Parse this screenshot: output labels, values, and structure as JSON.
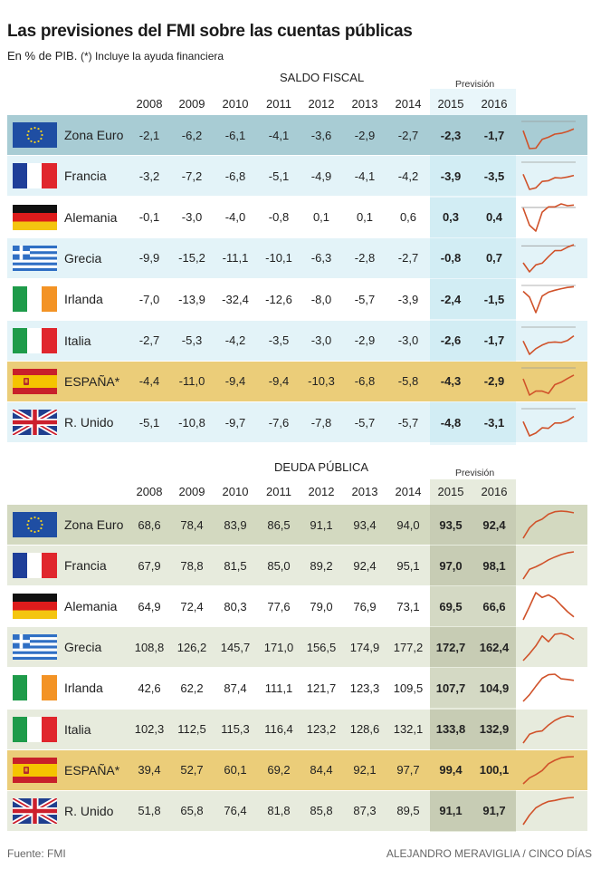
{
  "title": "Las previsiones del FMI sobre las cuentas públicas",
  "subtitle": "En % de PIB.",
  "subtitle_note": "(*) Incluye la ayuda financiera",
  "footer": {
    "source": "Fuente: FMI",
    "credit": "ALEJANDRO MERAVIGLIA / CINCO DÍAS"
  },
  "colors": {
    "sparkline": "#d0522a",
    "row_alt_fiscal": "#e3f3f8",
    "highlight_fiscal": "#a8ccd4",
    "forecast_fiscal": "#d2edf4",
    "espana": "#ebcd79",
    "row_alt_debt": "#e7ebdd",
    "highlight_debt": "#d3d9c0",
    "forecast_debt": "#c7ccb4"
  },
  "chart_data": [
    {
      "type": "table",
      "title": "SALDO FISCAL",
      "forecast_label": "Previsión",
      "years": [
        "2008",
        "2009",
        "2010",
        "2011",
        "2012",
        "2013",
        "2014",
        "2015",
        "2016"
      ],
      "rows": [
        {
          "country": "Zona Euro",
          "flag": "eu-flag",
          "values": [
            "-2,1",
            "-6,2",
            "-6,1",
            "-4,1",
            "-3,6",
            "-2,9",
            "-2,7",
            "-2,3",
            "-1,7"
          ],
          "series": [
            -2.1,
            -6.2,
            -6.1,
            -4.1,
            -3.6,
            -2.9,
            -2.7,
            -2.3,
            -1.7
          ]
        },
        {
          "country": "Francia",
          "flag": "france-flag",
          "values": [
            "-3,2",
            "-7,2",
            "-6,8",
            "-5,1",
            "-4,9",
            "-4,1",
            "-4,2",
            "-3,9",
            "-3,5"
          ],
          "series": [
            -3.2,
            -7.2,
            -6.8,
            -5.1,
            -4.9,
            -4.1,
            -4.2,
            -3.9,
            -3.5
          ]
        },
        {
          "country": "Alemania",
          "flag": "germany-flag",
          "values": [
            "-0,1",
            "-3,0",
            "-4,0",
            "-0,8",
            "0,1",
            "0,1",
            "0,6",
            "0,3",
            "0,4"
          ],
          "series": [
            -0.1,
            -3.0,
            -4.0,
            -0.8,
            0.1,
            0.1,
            0.6,
            0.3,
            0.4
          ]
        },
        {
          "country": "Grecia",
          "flag": "greece-flag",
          "values": [
            "-9,9",
            "-15,2",
            "-11,1",
            "-10,1",
            "-6,3",
            "-2,8",
            "-2,7",
            "-0,8",
            "0,7"
          ],
          "series": [
            -9.9,
            -15.2,
            -11.1,
            -10.1,
            -6.3,
            -2.8,
            -2.7,
            -0.8,
            0.7
          ]
        },
        {
          "country": "Irlanda",
          "flag": "ireland-flag",
          "values": [
            "-7,0",
            "-13,9",
            "-32,4",
            "-12,6",
            "-8,0",
            "-5,7",
            "-3,9",
            "-2,4",
            "-1,5"
          ],
          "series": [
            -7.0,
            -13.9,
            -32.4,
            -12.6,
            -8.0,
            -5.7,
            -3.9,
            -2.4,
            -1.5
          ]
        },
        {
          "country": "Italia",
          "flag": "italy-flag",
          "values": [
            "-2,7",
            "-5,3",
            "-4,2",
            "-3,5",
            "-3,0",
            "-2,9",
            "-3,0",
            "-2,6",
            "-1,7"
          ],
          "series": [
            -2.7,
            -5.3,
            -4.2,
            -3.5,
            -3.0,
            -2.9,
            -3.0,
            -2.6,
            -1.7
          ]
        },
        {
          "country": "ESPAÑA*",
          "flag": "spain-flag",
          "highlight": true,
          "values": [
            "-4,4",
            "-11,0",
            "-9,4",
            "-9,4",
            "-10,3",
            "-6,8",
            "-5,8",
            "-4,3",
            "-2,9"
          ],
          "series": [
            -4.4,
            -11.0,
            -9.4,
            -9.4,
            -10.3,
            -6.8,
            -5.8,
            -4.3,
            -2.9
          ]
        },
        {
          "country": "R. Unido",
          "flag": "uk-flag",
          "values": [
            "-5,1",
            "-10,8",
            "-9,7",
            "-7,6",
            "-7,8",
            "-5,7",
            "-5,7",
            "-4,8",
            "-3,1"
          ],
          "series": [
            -5.1,
            -10.8,
            -9.7,
            -7.6,
            -7.8,
            -5.7,
            -5.7,
            -4.8,
            -3.1
          ]
        }
      ]
    },
    {
      "type": "table",
      "title": "DEUDA PÚBLICA",
      "forecast_label": "Previsión",
      "years": [
        "2008",
        "2009",
        "2010",
        "2011",
        "2012",
        "2013",
        "2014",
        "2015",
        "2016"
      ],
      "rows": [
        {
          "country": "Zona Euro",
          "flag": "eu-flag",
          "values": [
            "68,6",
            "78,4",
            "83,9",
            "86,5",
            "91,1",
            "93,4",
            "94,0",
            "93,5",
            "92,4"
          ],
          "series": [
            68.6,
            78.4,
            83.9,
            86.5,
            91.1,
            93.4,
            94.0,
            93.5,
            92.4
          ]
        },
        {
          "country": "Francia",
          "flag": "france-flag",
          "values": [
            "67,9",
            "78,8",
            "81,5",
            "85,0",
            "89,2",
            "92,4",
            "95,1",
            "97,0",
            "98,1"
          ],
          "series": [
            67.9,
            78.8,
            81.5,
            85.0,
            89.2,
            92.4,
            95.1,
            97.0,
            98.1
          ]
        },
        {
          "country": "Alemania",
          "flag": "germany-flag",
          "values": [
            "64,9",
            "72,4",
            "80,3",
            "77,6",
            "79,0",
            "76,9",
            "73,1",
            "69,5",
            "66,6"
          ],
          "series": [
            64.9,
            72.4,
            80.3,
            77.6,
            79.0,
            76.9,
            73.1,
            69.5,
            66.6
          ]
        },
        {
          "country": "Grecia",
          "flag": "greece-flag",
          "values": [
            "108,8",
            "126,2",
            "145,7",
            "171,0",
            "156,5",
            "174,9",
            "177,2",
            "172,7",
            "162,4"
          ],
          "series": [
            108.8,
            126.2,
            145.7,
            171.0,
            156.5,
            174.9,
            177.2,
            172.7,
            162.4
          ]
        },
        {
          "country": "Irlanda",
          "flag": "ireland-flag",
          "values": [
            "42,6",
            "62,2",
            "87,4",
            "111,1",
            "121,7",
            "123,3",
            "109,5",
            "107,7",
            "104,9"
          ],
          "series": [
            42.6,
            62.2,
            87.4,
            111.1,
            121.7,
            123.3,
            109.5,
            107.7,
            104.9
          ]
        },
        {
          "country": "Italia",
          "flag": "italy-flag",
          "values": [
            "102,3",
            "112,5",
            "115,3",
            "116,4",
            "123,2",
            "128,6",
            "132,1",
            "133,8",
            "132,9"
          ],
          "series": [
            102.3,
            112.5,
            115.3,
            116.4,
            123.2,
            128.6,
            132.1,
            133.8,
            132.9
          ]
        },
        {
          "country": "ESPAÑA*",
          "flag": "spain-flag",
          "highlight": true,
          "values": [
            "39,4",
            "52,7",
            "60,1",
            "69,2",
            "84,4",
            "92,1",
            "97,7",
            "99,4",
            "100,1"
          ],
          "series": [
            39.4,
            52.7,
            60.1,
            69.2,
            84.4,
            92.1,
            97.7,
            99.4,
            100.1
          ]
        },
        {
          "country": "R. Unido",
          "flag": "uk-flag",
          "values": [
            "51,8",
            "65,8",
            "76,4",
            "81,8",
            "85,8",
            "87,3",
            "89,5",
            "91,1",
            "91,7"
          ],
          "series": [
            51.8,
            65.8,
            76.4,
            81.8,
            85.8,
            87.3,
            89.5,
            91.1,
            91.7
          ]
        }
      ]
    }
  ]
}
